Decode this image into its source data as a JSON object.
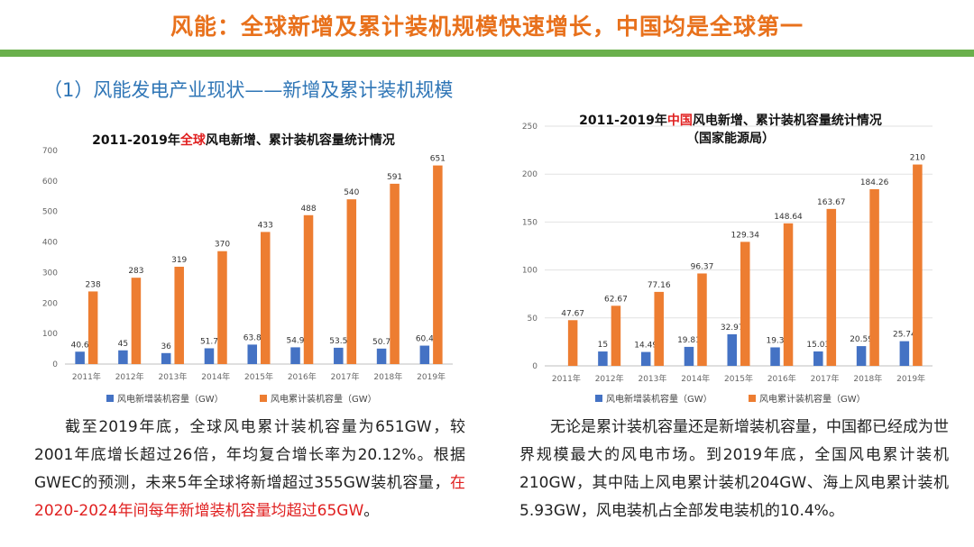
{
  "header": {
    "title": "风能：全球新增及累计装机规模快速增长，中国均是全球第一",
    "section": "（1）风能发电产业现状——新增及累计装机规模"
  },
  "colors": {
    "accent": "#E8711C",
    "rule": "#6AB04C",
    "heading": "#2E75B6",
    "bar_new": "#4472C4",
    "bar_cumulative": "#ED7D31",
    "highlight": "#E02020"
  },
  "chart_data": [
    {
      "type": "bar",
      "title_pre": "2011-2019年",
      "title_red": "全球",
      "title_post": "风电新增、累计装机容量统计情况",
      "categories": [
        "2011年",
        "2012年",
        "2013年",
        "2014年",
        "2015年",
        "2016年",
        "2017年",
        "2018年",
        "2019年"
      ],
      "series": [
        {
          "name": "风电新增装机容量（GW）",
          "values": [
            40.6,
            45,
            36,
            51.7,
            63.8,
            54.9,
            53.5,
            50.7,
            60.4
          ],
          "labels": [
            "40.6",
            "45",
            "36",
            "51.7",
            "63.8",
            "54.9",
            "53.5",
            "50.7",
            "60.4"
          ]
        },
        {
          "name": "风电累计装机容量（GW）",
          "values": [
            238,
            283,
            319,
            370,
            433,
            488,
            540,
            591,
            651
          ],
          "labels": [
            "238",
            "283",
            "319",
            "370",
            "433",
            "488",
            "540",
            "591",
            "651"
          ]
        }
      ],
      "ylim": [
        0,
        700
      ],
      "yticks": [
        0,
        100,
        200,
        300,
        400,
        500,
        600,
        700
      ],
      "grid": false,
      "legend": "bottom"
    },
    {
      "type": "bar",
      "title_pre": "2011-2019年",
      "title_red": "中国",
      "title_post": "风电新增、累计装机容量统计情况",
      "subtitle": "（国家能源局）",
      "categories": [
        "2011年",
        "2012年",
        "2013年",
        "2014年",
        "2015年",
        "2016年",
        "2017年",
        "2018年",
        "2019年"
      ],
      "series": [
        {
          "name": "风电新增装机容量（GW）",
          "values": [
            null,
            15,
            14.49,
            19.81,
            32.97,
            19.3,
            15.03,
            20.59,
            25.74
          ],
          "labels": [
            "",
            "15",
            "14.49",
            "19.81",
            "32.97",
            "19.3",
            "15.03",
            "20.59",
            "25.74"
          ]
        },
        {
          "name": "风电累计装机容量（GW）",
          "values": [
            47.67,
            62.67,
            77.16,
            96.37,
            129.34,
            148.64,
            163.67,
            184.26,
            210
          ],
          "labels": [
            "47.67",
            "62.67",
            "77.16",
            "96.37",
            "129.34",
            "148.64",
            "163.67",
            "184.26",
            "210"
          ]
        }
      ],
      "ylim": [
        0,
        250
      ],
      "yticks": [
        0,
        50,
        100,
        150,
        200,
        250
      ],
      "grid": true,
      "legend": "bottom"
    }
  ],
  "left_text": {
    "normal": "截至2019年底，全球风电累计装机容量为651GW，较2001年底增长超过26倍，年均复合增长率为20.12%。根据GWEC的预测，未来5年全球将新增超过355GW装机容量，",
    "highlight": "在2020-2024年间每年新增装机容量均超过65GW",
    "tail": "。"
  },
  "right_text": {
    "normal": "无论是累计装机容量还是新增装机容量，中国都已经成为世界规模最大的风电市场。到2019年底，全国风电累计装机210GW，其中陆上风电累计装机204GW、海上风电累计装机5.93GW，风电装机占全部发电装机的10.4%。"
  }
}
